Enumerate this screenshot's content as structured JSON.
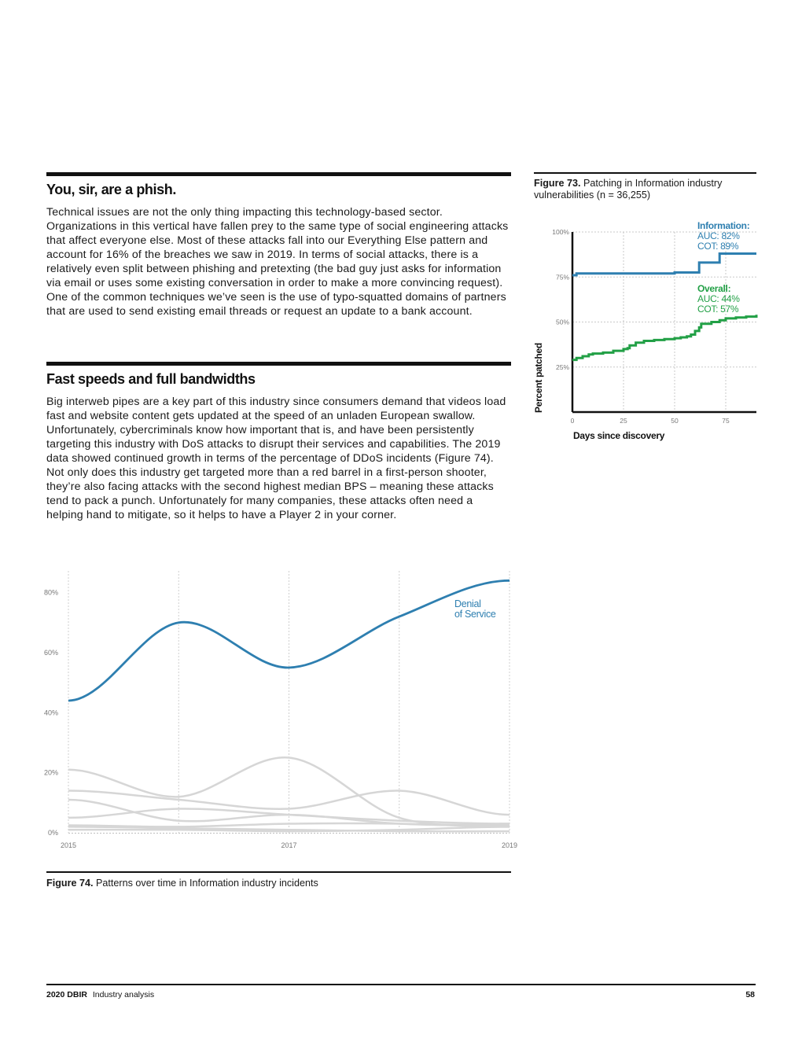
{
  "section1": {
    "title": "You, sir, are a phish.",
    "body": "Technical issues are not the only thing impacting this technology-based sector. Organizations in this vertical have fallen prey to the same type of social engineering attacks that affect everyone else. Most of these attacks fall into our Everything Else pattern and account for 16% of the breaches we saw in 2019. In terms of social attacks, there is a relatively even split between phishing and pretexting (the bad guy just asks for information via email or uses some existing conversation in order to make a more convincing request). One of the common techniques we’ve seen is the use of typo-squatted domains of partners that are used to send existing email threads or request an update to a bank account."
  },
  "section2": {
    "title": "Fast speeds and full bandwidths",
    "body": "Big interweb pipes are a key part of this industry since consumers demand that videos load fast and website content gets updated at the speed of an unladen European swallow. Unfortunately, cybercriminals know how important that is, and have been persistently targeting this industry with DoS attacks to disrupt their services and capabilities. The 2019 data showed continued growth in terms of the percentage of DDoS incidents (Figure 74). Not only does this industry get targeted more than a red barrel in a first-person shooter, they’re also facing attacks with the second highest median BPS – meaning these attacks tend to pack a punch. Unfortunately for many companies, these attacks often need a helping hand to mitigate, so it helps to have a Player 2 in your corner."
  },
  "figure73": {
    "label": "Figure 73.",
    "caption": "Patching in Information industry vulnerabilities (n = 36,255)"
  },
  "figure74": {
    "label": "Figure 74.",
    "caption": "Patterns over time in Information industry incidents"
  },
  "footer": {
    "report": "2020 DBIR",
    "section": "Industry analysis",
    "page": "58"
  },
  "colors": {
    "information": "#2e7fb0",
    "overall": "#22a046",
    "dos": "#2e7fb0",
    "other_patterns": "#d6d6d6"
  },
  "chart_data": [
    {
      "type": "line",
      "xlabel": "Days since discovery",
      "ylabel": "Percent patched",
      "xlim": [
        0,
        90
      ],
      "ylim": [
        0,
        100
      ],
      "x_ticks": [
        "0",
        "25",
        "50",
        "75"
      ],
      "y_ticks": [
        "25%",
        "50%",
        "75%",
        "100%"
      ],
      "grid": true,
      "series": [
        {
          "name": "Information:",
          "stats": [
            "AUC: 82%",
            "COT: 89%"
          ],
          "x": [
            0,
            2,
            30,
            50,
            62,
            62,
            72,
            72,
            90
          ],
          "y": [
            76,
            77,
            77,
            77.5,
            78,
            83,
            83,
            88,
            88
          ]
        },
        {
          "name": "Overall:",
          "stats": [
            "AUC: 44%",
            "COT: 57%"
          ],
          "x": [
            0,
            2,
            5,
            8,
            10,
            15,
            20,
            25,
            27,
            28,
            31,
            35,
            40,
            45,
            50,
            53,
            56,
            58,
            60,
            62,
            63,
            68,
            72,
            75,
            80,
            85,
            90
          ],
          "y": [
            29,
            30,
            31,
            32,
            32.5,
            33,
            34,
            35,
            35.5,
            37,
            38.5,
            39.5,
            40,
            40.5,
            41,
            41.5,
            42,
            43,
            45,
            47,
            49,
            50,
            51,
            52,
            52.5,
            53,
            54
          ]
        }
      ]
    },
    {
      "type": "line",
      "x": [
        "2015",
        "2016",
        "2017",
        "2018",
        "2019"
      ],
      "x_ticks": [
        "2015",
        "2017",
        "2019"
      ],
      "y_ticks": [
        "0%",
        "20%",
        "40%",
        "60%",
        "80%"
      ],
      "ylim": [
        0,
        88
      ],
      "grid": true,
      "series": [
        {
          "name": "Denial of Service",
          "highlight": true,
          "values": [
            44,
            70,
            55,
            72,
            84
          ]
        },
        {
          "values": [
            21,
            12,
            25,
            5,
            3
          ]
        },
        {
          "values": [
            14,
            11,
            8,
            14,
            6
          ]
        },
        {
          "values": [
            11,
            4,
            6,
            3,
            2.5
          ]
        },
        {
          "values": [
            5,
            8,
            6,
            4,
            3
          ]
        },
        {
          "values": [
            2.5,
            2,
            3,
            3,
            2
          ]
        },
        {
          "values": [
            2,
            1.5,
            1,
            0.5,
            0.5
          ]
        },
        {
          "values": [
            1,
            1,
            0.5,
            1,
            2
          ]
        }
      ]
    }
  ]
}
